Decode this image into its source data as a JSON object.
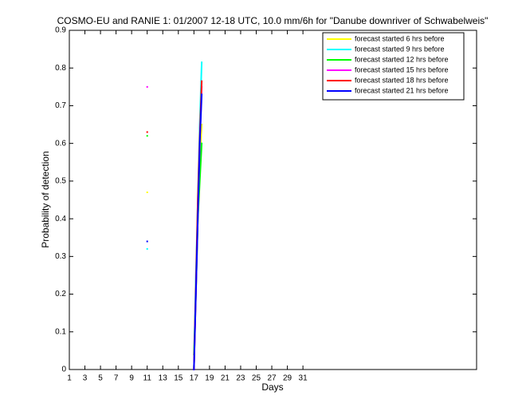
{
  "chart_data": {
    "type": "line",
    "title": "COSMO-EU and RANIE 1: 01/2007 12-18 UTC, 10.0 mm/6h for \"Danube downriver of Schwabelweis\"",
    "x_label": "Days",
    "y_label": "Probability of detection",
    "x": [
      11,
      11.5,
      17,
      17.25,
      17.5,
      17.75,
      18
    ],
    "series": [
      {
        "name": "forecast started 6 hrs before",
        "color": "#ffff00",
        "values": [
          0.47,
          null,
          0,
          0.2,
          0.4,
          0.55,
          0.65
        ]
      },
      {
        "name": "forecast started 9 hrs before",
        "color": "#00ffff",
        "values": [
          0.32,
          null,
          0,
          0.25,
          0.45,
          0.65,
          0.815
        ]
      },
      {
        "name": "forecast started 12 hrs before",
        "color": "#00ff00",
        "values": [
          0.62,
          null,
          0.04,
          0.2,
          0.4,
          0.5,
          0.6
        ]
      },
      {
        "name": "forecast started 15 hrs before",
        "color": "#ff00ff",
        "values": [
          0.75,
          null,
          0,
          0.2,
          0.42,
          0.6,
          0.75
        ]
      },
      {
        "name": "forecast started 18 hrs before",
        "color": "#ff0000",
        "values": [
          0.63,
          null,
          0,
          0.22,
          0.45,
          0.62,
          0.765
        ]
      },
      {
        "name": "forecast started 21 hrs before",
        "color": "#0000ff",
        "values": [
          0.34,
          null,
          0,
          0.2,
          0.4,
          0.6,
          0.73
        ]
      }
    ],
    "xlim": [
      1,
      53.3
    ],
    "xticks": [
      1,
      3,
      5,
      7,
      9,
      11,
      13,
      15,
      17,
      19,
      21,
      23,
      25,
      27,
      29,
      31
    ],
    "ylim": [
      0,
      0.9
    ],
    "yticks": [
      0,
      0.1,
      0.2,
      0.3,
      0.4,
      0.5,
      0.6,
      0.7,
      0.8,
      0.9
    ],
    "legend": "upper right"
  }
}
